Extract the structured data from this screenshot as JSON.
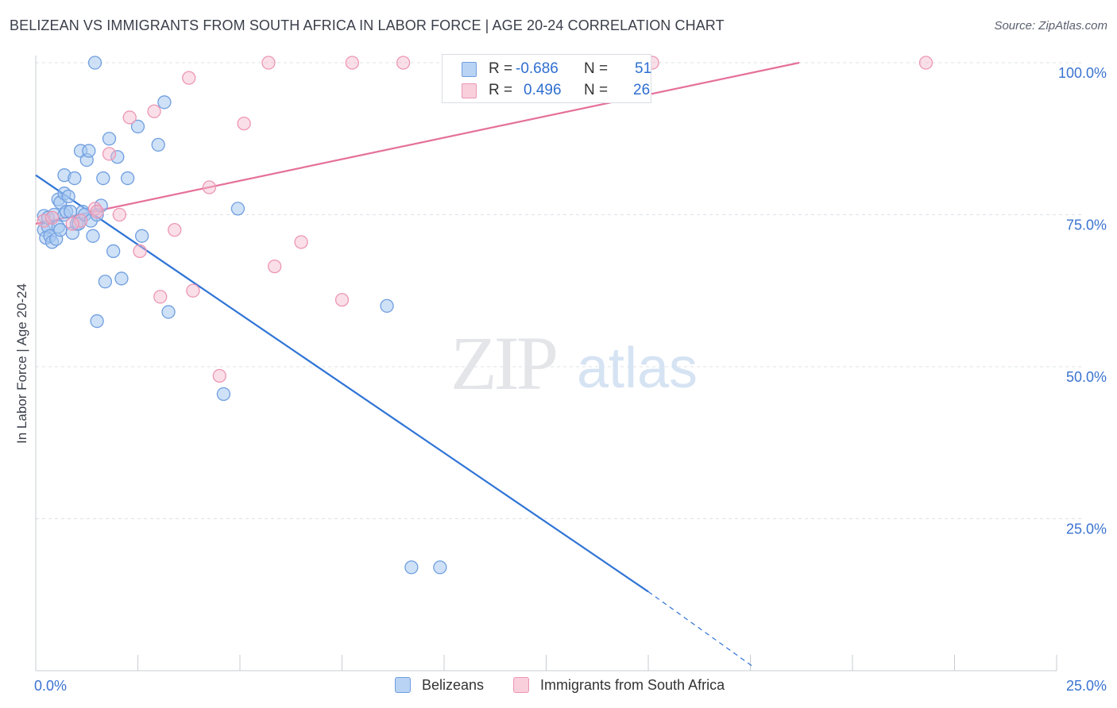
{
  "title": "BELIZEAN VS IMMIGRANTS FROM SOUTH AFRICA IN LABOR FORCE | AGE 20-24 CORRELATION CHART",
  "source": "Source: ZipAtlas.com",
  "watermark": {
    "zip": "ZIP",
    "atlas": "atlas"
  },
  "legend": {
    "r_label": "R =",
    "n_label": "N =",
    "blue": {
      "r": "-0.686",
      "n": "51"
    },
    "pink": {
      "r": "0.496",
      "n": "26"
    }
  },
  "colors": {
    "blue_fill": "#a8c8f0",
    "blue_stroke": "#6f9ee0",
    "blue_line": "#2f74d6",
    "pink_fill": "#f5b8cb",
    "pink_stroke": "#ec96b3",
    "pink_line": "#e5709a",
    "tick_label": "#3a73d0"
  },
  "chart_data": {
    "type": "scatter",
    "title": "BELIZEAN VS IMMIGRANTS FROM SOUTH AFRICA IN LABOR FORCE | AGE 20-24 CORRELATION CHART",
    "xlabel": "",
    "ylabel": "In Labor Force | Age 20-24",
    "xlim": [
      0,
      25
    ],
    "ylim": [
      0,
      100
    ],
    "x_ticks": [
      {
        "value": 0,
        "label": "0.0%"
      },
      {
        "value": 25,
        "label": "25.0%"
      }
    ],
    "y_ticks": [
      {
        "value": 25,
        "label": "25.0%"
      },
      {
        "value": 50,
        "label": "50.0%"
      },
      {
        "value": 75,
        "label": "75.0%"
      },
      {
        "value": 100,
        "label": "100.0%"
      }
    ],
    "series": [
      {
        "name": "Belizeans",
        "color": "blue",
        "points": [
          [
            0.2,
            74.8
          ],
          [
            0.2,
            72.5
          ],
          [
            0.3,
            73.0
          ],
          [
            0.25,
            71.2
          ],
          [
            0.35,
            71.5
          ],
          [
            0.3,
            74.5
          ],
          [
            0.4,
            70.5
          ],
          [
            0.45,
            75.0
          ],
          [
            0.5,
            71.0
          ],
          [
            0.55,
            77.5
          ],
          [
            0.6,
            77.0
          ],
          [
            0.55,
            73.0
          ],
          [
            0.7,
            81.5
          ],
          [
            0.7,
            75.0
          ],
          [
            0.75,
            75.5
          ],
          [
            0.7,
            78.5
          ],
          [
            0.8,
            78.0
          ],
          [
            0.85,
            75.5
          ],
          [
            0.9,
            72.0
          ],
          [
            0.95,
            81.0
          ],
          [
            1.0,
            73.5
          ],
          [
            1.05,
            73.5
          ],
          [
            1.1,
            85.5
          ],
          [
            1.15,
            75.5
          ],
          [
            1.2,
            75.0
          ],
          [
            1.25,
            84.0
          ],
          [
            1.3,
            85.5
          ],
          [
            1.35,
            74.0
          ],
          [
            1.4,
            71.5
          ],
          [
            1.45,
            100.0
          ],
          [
            1.5,
            57.5
          ],
          [
            1.5,
            75.0
          ],
          [
            1.6,
            76.5
          ],
          [
            1.65,
            81.0
          ],
          [
            1.7,
            64.0
          ],
          [
            1.8,
            87.5
          ],
          [
            1.9,
            69.0
          ],
          [
            2.0,
            84.5
          ],
          [
            2.1,
            64.5
          ],
          [
            2.25,
            81.0
          ],
          [
            2.5,
            89.5
          ],
          [
            2.6,
            71.5
          ],
          [
            3.0,
            86.5
          ],
          [
            3.15,
            93.5
          ],
          [
            3.25,
            59.0
          ],
          [
            4.6,
            45.5
          ],
          [
            4.95,
            76.0
          ],
          [
            8.6,
            60.0
          ],
          [
            9.2,
            17.0
          ],
          [
            9.9,
            17.0
          ],
          [
            0.6,
            72.5
          ]
        ]
      },
      {
        "name": "Immigrants from South Africa",
        "color": "pink",
        "points": [
          [
            0.2,
            74.0
          ],
          [
            0.4,
            74.5
          ],
          [
            1.1,
            74.0
          ],
          [
            1.45,
            76.0
          ],
          [
            1.5,
            75.5
          ],
          [
            1.8,
            85.0
          ],
          [
            2.05,
            75.0
          ],
          [
            2.3,
            91.0
          ],
          [
            2.55,
            69.0
          ],
          [
            2.9,
            92.0
          ],
          [
            3.05,
            61.5
          ],
          [
            3.4,
            72.5
          ],
          [
            3.75,
            97.5
          ],
          [
            3.85,
            62.5
          ],
          [
            4.25,
            79.5
          ],
          [
            4.5,
            48.5
          ],
          [
            5.1,
            90.0
          ],
          [
            5.7,
            100.0
          ],
          [
            5.85,
            66.5
          ],
          [
            6.5,
            70.5
          ],
          [
            7.5,
            61.0
          ],
          [
            7.75,
            100.0
          ],
          [
            9.0,
            100.0
          ],
          [
            15.1,
            100.0
          ],
          [
            21.8,
            100.0
          ],
          [
            0.9,
            73.5
          ]
        ]
      }
    ],
    "trend_lines": [
      {
        "series": "Belizeans",
        "from": [
          0,
          81.5
        ],
        "to": [
          15.0,
          13.0
        ],
        "dashed_to": [
          17.6,
          0.5
        ]
      },
      {
        "series": "Immigrants from South Africa",
        "from": [
          0,
          73.5
        ],
        "to": [
          18.7,
          100.0
        ]
      }
    ]
  }
}
